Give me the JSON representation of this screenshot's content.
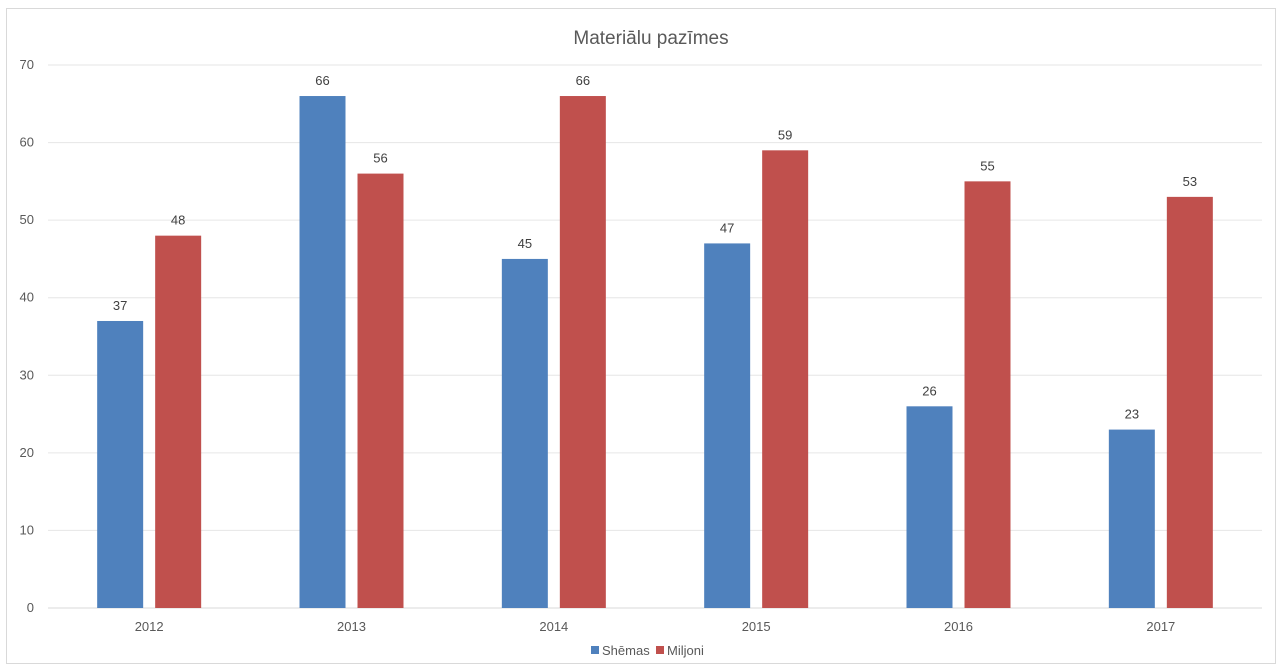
{
  "chart_data": {
    "type": "bar",
    "title": "Materiālu pazīmes",
    "xlabel": "",
    "ylabel": "",
    "categories": [
      "2012",
      "2013",
      "2014",
      "2015",
      "2016",
      "2017"
    ],
    "series": [
      {
        "name": "Shēmas",
        "values": [
          37,
          66,
          45,
          47,
          26,
          23
        ],
        "color": "#4f81bd"
      },
      {
        "name": "Miljoni",
        "values": [
          48,
          56,
          66,
          59,
          55,
          53
        ],
        "color": "#c0504d"
      }
    ],
    "ylim": [
      0,
      70
    ],
    "yticks": [
      0,
      10,
      20,
      30,
      40,
      50,
      60,
      70
    ],
    "grid": true,
    "gridline_color": "#e6e6e6",
    "data_labels": true,
    "legend_position": "bottom"
  }
}
